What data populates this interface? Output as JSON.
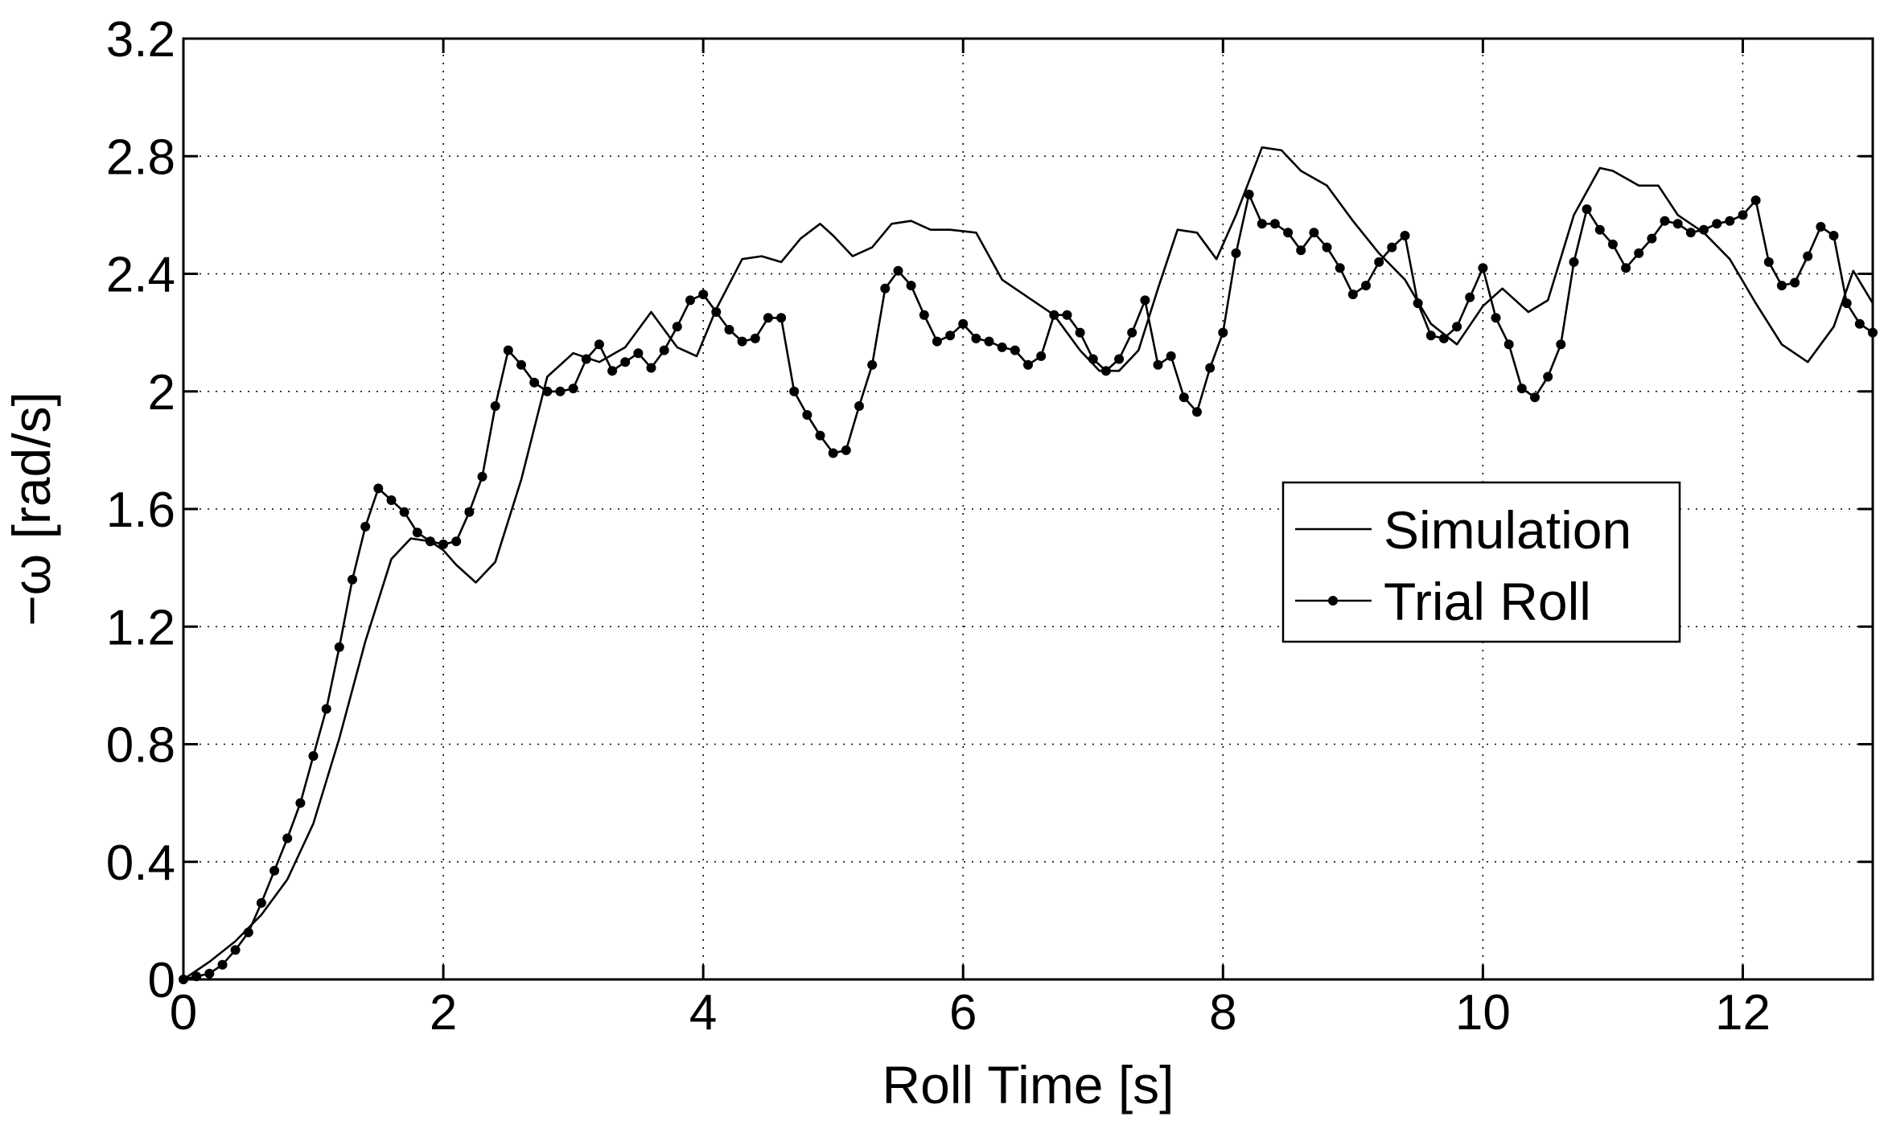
{
  "chart_data": {
    "type": "line",
    "title": "",
    "xlabel": "Roll Time [s]",
    "ylabel": "−ω [rad/s]",
    "xlim": [
      0,
      13
    ],
    "ylim": [
      0,
      3.2
    ],
    "xticks": [
      0,
      2,
      4,
      6,
      8,
      10,
      12
    ],
    "xtick_labels": [
      "0",
      "2",
      "4",
      "6",
      "8",
      "10",
      "12"
    ],
    "yticks": [
      0,
      0.4,
      0.8,
      1.2,
      1.6,
      2.0,
      2.4,
      2.8,
      3.2
    ],
    "ytick_labels": [
      "0",
      "0.4",
      "0.8",
      "1.2",
      "1.6",
      "2",
      "2.4",
      "2.8",
      "3.2"
    ],
    "grid": true,
    "legend_position": "center-right",
    "series": [
      {
        "name": "Simulation",
        "color": "#000000",
        "marker": "none",
        "x": [
          0,
          0.2,
          0.4,
          0.6,
          0.8,
          1.0,
          1.2,
          1.4,
          1.6,
          1.75,
          1.9,
          2.0,
          2.1,
          2.25,
          2.4,
          2.6,
          2.8,
          3.0,
          3.2,
          3.4,
          3.6,
          3.8,
          3.95,
          4.1,
          4.3,
          4.45,
          4.6,
          4.75,
          4.9,
          5.0,
          5.15,
          5.3,
          5.45,
          5.6,
          5.75,
          5.9,
          6.1,
          6.3,
          6.5,
          6.7,
          6.9,
          7.05,
          7.2,
          7.35,
          7.5,
          7.65,
          7.8,
          7.95,
          8.1,
          8.3,
          8.45,
          8.6,
          8.8,
          9.0,
          9.2,
          9.4,
          9.6,
          9.8,
          10.0,
          10.15,
          10.35,
          10.5,
          10.7,
          10.9,
          11.0,
          11.2,
          11.35,
          11.5,
          11.7,
          11.9,
          12.1,
          12.3,
          12.5,
          12.7,
          12.85,
          13.0
        ],
        "values": [
          0,
          0.06,
          0.13,
          0.22,
          0.34,
          0.53,
          0.82,
          1.15,
          1.43,
          1.5,
          1.49,
          1.46,
          1.41,
          1.35,
          1.42,
          1.7,
          2.05,
          2.13,
          2.1,
          2.15,
          2.27,
          2.15,
          2.12,
          2.28,
          2.45,
          2.46,
          2.44,
          2.52,
          2.57,
          2.53,
          2.46,
          2.49,
          2.57,
          2.58,
          2.55,
          2.55,
          2.54,
          2.38,
          2.32,
          2.26,
          2.14,
          2.07,
          2.07,
          2.14,
          2.35,
          2.55,
          2.54,
          2.45,
          2.6,
          2.83,
          2.82,
          2.75,
          2.7,
          2.58,
          2.47,
          2.38,
          2.23,
          2.16,
          2.29,
          2.35,
          2.27,
          2.31,
          2.6,
          2.76,
          2.75,
          2.7,
          2.7,
          2.6,
          2.54,
          2.45,
          2.3,
          2.16,
          2.1,
          2.22,
          2.41,
          2.3
        ]
      },
      {
        "name": "Trial Roll",
        "color": "#000000",
        "marker": "dot",
        "x": [
          0,
          0.1,
          0.2,
          0.3,
          0.4,
          0.5,
          0.6,
          0.7,
          0.8,
          0.9,
          1.0,
          1.1,
          1.2,
          1.3,
          1.4,
          1.5,
          1.6,
          1.7,
          1.8,
          1.9,
          2.0,
          2.1,
          2.2,
          2.3,
          2.4,
          2.5,
          2.6,
          2.7,
          2.8,
          2.9,
          3.0,
          3.1,
          3.2,
          3.3,
          3.4,
          3.5,
          3.6,
          3.7,
          3.8,
          3.9,
          4.0,
          4.1,
          4.2,
          4.3,
          4.4,
          4.5,
          4.6,
          4.7,
          4.8,
          4.9,
          5.0,
          5.1,
          5.2,
          5.3,
          5.4,
          5.5,
          5.6,
          5.7,
          5.8,
          5.9,
          6.0,
          6.1,
          6.2,
          6.3,
          6.4,
          6.5,
          6.6,
          6.7,
          6.8,
          6.9,
          7.0,
          7.1,
          7.2,
          7.3,
          7.4,
          7.5,
          7.6,
          7.7,
          7.8,
          7.9,
          8.0,
          8.1,
          8.2,
          8.3,
          8.4,
          8.5,
          8.6,
          8.7,
          8.8,
          8.9,
          9.0,
          9.1,
          9.2,
          9.3,
          9.4,
          9.5,
          9.6,
          9.7,
          9.8,
          9.9,
          10.0,
          10.1,
          10.2,
          10.3,
          10.4,
          10.5,
          10.6,
          10.7,
          10.8,
          10.9,
          11.0,
          11.1,
          11.2,
          11.3,
          11.4,
          11.5,
          11.6,
          11.7,
          11.8,
          11.9,
          12.0,
          12.1,
          12.2,
          12.3,
          12.4,
          12.5,
          12.6,
          12.7,
          12.8,
          12.9,
          13.0
        ],
        "values": [
          0,
          0.01,
          0.02,
          0.05,
          0.1,
          0.16,
          0.26,
          0.37,
          0.48,
          0.6,
          0.76,
          0.92,
          1.13,
          1.36,
          1.54,
          1.67,
          1.63,
          1.59,
          1.52,
          1.49,
          1.48,
          1.49,
          1.59,
          1.71,
          1.95,
          2.14,
          2.09,
          2.03,
          2.0,
          2.0,
          2.01,
          2.11,
          2.16,
          2.07,
          2.1,
          2.13,
          2.08,
          2.14,
          2.22,
          2.31,
          2.33,
          2.27,
          2.21,
          2.17,
          2.18,
          2.25,
          2.25,
          2.0,
          1.92,
          1.85,
          1.79,
          1.8,
          1.95,
          2.09,
          2.35,
          2.41,
          2.36,
          2.26,
          2.17,
          2.19,
          2.23,
          2.18,
          2.17,
          2.15,
          2.14,
          2.09,
          2.12,
          2.26,
          2.26,
          2.2,
          2.11,
          2.07,
          2.11,
          2.2,
          2.31,
          2.09,
          2.12,
          1.98,
          1.93,
          2.08,
          2.2,
          2.47,
          2.67,
          2.57,
          2.57,
          2.54,
          2.48,
          2.54,
          2.49,
          2.42,
          2.33,
          2.36,
          2.44,
          2.49,
          2.53,
          2.3,
          2.19,
          2.18,
          2.22,
          2.32,
          2.42,
          2.25,
          2.16,
          2.01,
          1.98,
          2.05,
          2.16,
          2.44,
          2.62,
          2.55,
          2.5,
          2.42,
          2.47,
          2.52,
          2.58,
          2.57,
          2.54,
          2.55,
          2.57,
          2.58,
          2.6,
          2.65,
          2.44,
          2.36,
          2.37,
          2.46,
          2.56,
          2.53,
          2.3,
          2.23,
          2.2
        ]
      }
    ]
  }
}
